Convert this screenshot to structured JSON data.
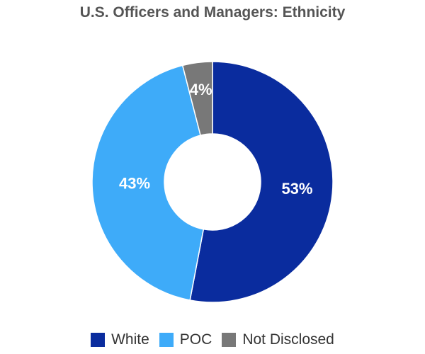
{
  "chart_data": {
    "type": "pie",
    "title": "U.S. Officers and Managers: Ethnicity",
    "donut": true,
    "categories": [
      "White",
      "POC",
      "Not Disclosed"
    ],
    "values": [
      53,
      43,
      4
    ],
    "labels": [
      "53%",
      "43%",
      "4%"
    ],
    "colors": [
      "#0a2c9e",
      "#3eabf9",
      "#787878"
    ],
    "legend_position": "bottom"
  }
}
